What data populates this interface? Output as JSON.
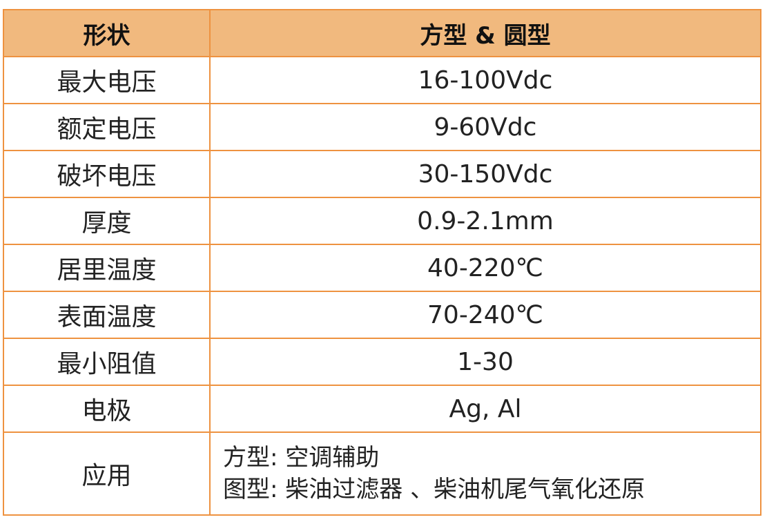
{
  "header": {
    "col1": "形状",
    "col2": "方型 & 圆型"
  },
  "rows": [
    {
      "label": "最大电压",
      "value": "16-100Vdc"
    },
    {
      "label": "额定电压",
      "value": "9-60Vdc"
    },
    {
      "label": "破坏电压",
      "value": "30-150Vdc"
    },
    {
      "label": "厚度",
      "value": "0.9-2.1mm"
    },
    {
      "label": "居里温度",
      "value": "40-220℃"
    },
    {
      "label": "表面温度",
      "value": "70-240℃"
    },
    {
      "label": "最小阻值",
      "value": "1-30"
    },
    {
      "label": "电极",
      "value": "Ag, Al"
    }
  ],
  "application": {
    "label": "应用",
    "lines": [
      "方型: 空调辅助",
      "图型: 柴油过滤器 、柴油机尾气氧化还原"
    ]
  },
  "colors": {
    "header_bg": "#F1B97E",
    "border": "#EE9240"
  }
}
